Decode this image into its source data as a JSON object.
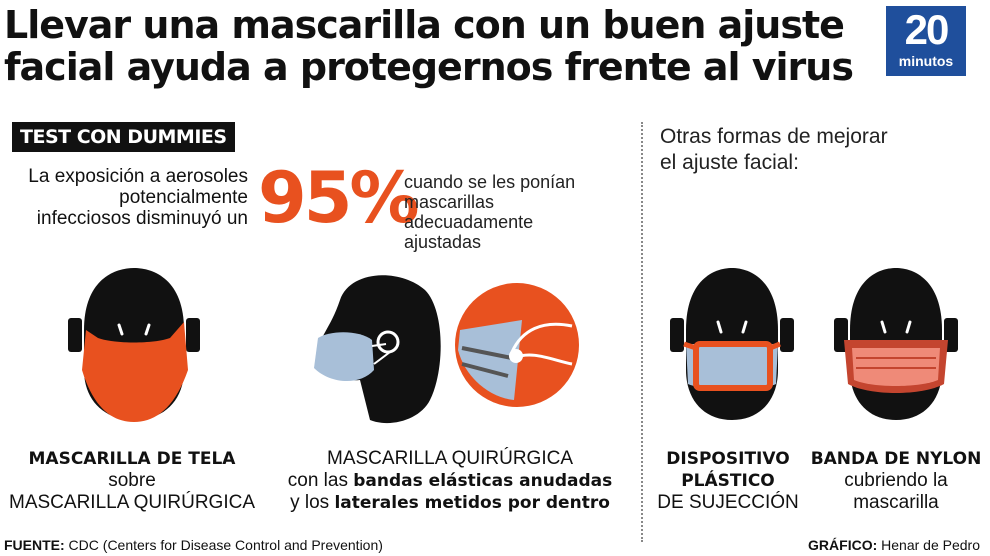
{
  "title": {
    "line1": "Llevar una mascarilla con un buen ajuste",
    "line2": "facial ayuda a protegernos frente al virus"
  },
  "logo": {
    "number": "20",
    "word": "minutos"
  },
  "badge": "TEST CON DUMMIES",
  "exposure": {
    "line1": "La exposición a aerosoles",
    "line2": "potencialmente",
    "line3": "infecciosos disminuyó un",
    "percent": "95%",
    "when1": "cuando se les ponían",
    "when2": "mascarillas",
    "when3": "adecuadamente",
    "when4": "ajustadas"
  },
  "other": {
    "line1": "Otras formas de mejorar",
    "line2": "el ajuste facial:"
  },
  "captions": {
    "cloth": {
      "bold": "MASCARILLA DE TELA",
      "line2": "sobre",
      "line3": "MASCARILLA QUIRÚRGICA"
    },
    "surgical": {
      "line1": "MASCARILLA QUIRÚRGICA",
      "pre2": "con las ",
      "bold2": "bandas elásticas anudadas",
      "pre3": "y los ",
      "bold3": "laterales metidos por dentro"
    },
    "device": {
      "bold1": "DISPOSITIVO",
      "bold2": "PLÁSTICO",
      "line3": "DE SUJECCIÓN"
    },
    "nylon": {
      "bold1": "BANDA DE NYLON",
      "line2": "cubriendo la",
      "line3": "mascarilla"
    }
  },
  "footer": {
    "source_label": "FUENTE:",
    "source_text": " CDC (Centers for Disease Control and Prevention)",
    "graphic_label": "GRÁFICO:",
    "graphic_text": " Henar de Pedro"
  },
  "colors": {
    "orange": "#e8511f",
    "blue": "#a8bfd8",
    "pink": "#ef8a78",
    "logo_blue": "#1f4f9c",
    "black": "#111111"
  }
}
